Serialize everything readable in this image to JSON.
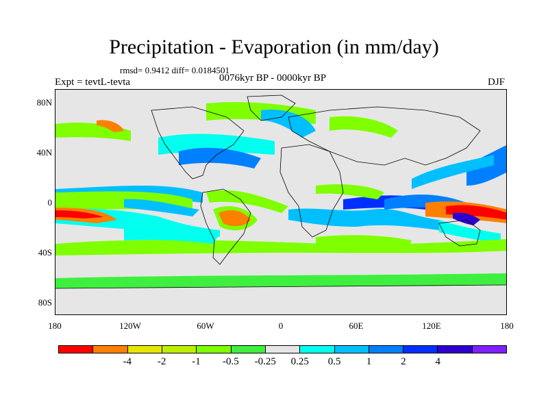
{
  "title": "Precipitation - Evaporation (in mm/day)",
  "stats": "rmsd= 0.9412 diff= 0.0184501",
  "period": "0076kyr BP - 0000kyr BP",
  "experiment": "Expt = tevtL-tevta",
  "season": "DJF",
  "y_ticks": [
    "80N",
    "40N",
    "0",
    "40S",
    "80S"
  ],
  "x_ticks": [
    "180",
    "120W",
    "60W",
    "0",
    "60E",
    "120E",
    "180"
  ],
  "colorbar": {
    "colors": [
      "#ff0000",
      "#ff7f00",
      "#e6e600",
      "#bfef00",
      "#7fff00",
      "#3fef3f",
      "#e6e6e6",
      "#00ffef",
      "#00bfff",
      "#007fff",
      "#0030ff",
      "#2e00d0",
      "#8020ff"
    ],
    "labels": [
      "-4",
      "-2",
      "-1",
      "-0.5",
      "-0.25",
      "0.25",
      "0.5",
      "1",
      "2",
      "4"
    ]
  },
  "map": {
    "lon_range": [
      -180,
      180
    ],
    "lat_range": [
      -90,
      90
    ],
    "background": "#e6e6e6"
  }
}
